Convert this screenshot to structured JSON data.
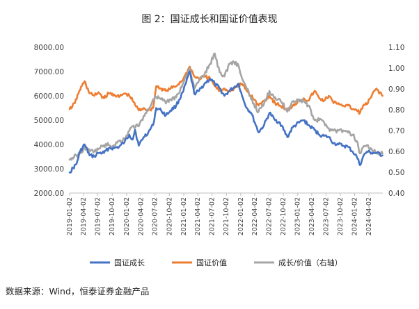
{
  "chart_data": {
    "type": "line",
    "title": "图 2：国证成长和国证价值表现",
    "source": "数据来源：Wind，恒泰证券金融产品",
    "y_left": {
      "ylim": [
        2000,
        8000
      ],
      "ticks": [
        "2000.00",
        "3000.00",
        "4000.00",
        "5000.00",
        "6000.00",
        "7000.00",
        "8000.00"
      ]
    },
    "y_right": {
      "ylim": [
        0.4,
        1.1
      ],
      "ticks": [
        "0.40",
        "0.50",
        "0.60",
        "0.70",
        "0.80",
        "0.90",
        "1.00",
        "1.10"
      ]
    },
    "x_range": [
      "2019-01-02",
      "2024-06-30"
    ],
    "x_ticks": [
      "2019-01-02",
      "2019-04-02",
      "2019-07-02",
      "2019-10-02",
      "2020-01-02",
      "2020-04-02",
      "2020-07-02",
      "2020-10-02",
      "2021-01-02",
      "2021-04-02",
      "2021-07-02",
      "2021-10-02",
      "2022-01-02",
      "2022-04-02",
      "2022-07-02",
      "2022-10-02",
      "2023-01-02",
      "2023-04-02",
      "2023-07-02",
      "2023-10-02",
      "2024-01-02",
      "2024-04-02"
    ],
    "grid": false,
    "legend_position": "bottom",
    "series": [
      {
        "name": "国证成长",
        "axis": "left",
        "color": "#4472C4",
        "points": [
          [
            "2019-01-02",
            2850
          ],
          [
            "2019-02-15",
            3200
          ],
          [
            "2019-03-10",
            3700
          ],
          [
            "2019-04-08",
            4000
          ],
          [
            "2019-05-10",
            3550
          ],
          [
            "2019-06-10",
            3500
          ],
          [
            "2019-07-05",
            3650
          ],
          [
            "2019-08-10",
            3650
          ],
          [
            "2019-09-10",
            3850
          ],
          [
            "2019-10-15",
            3850
          ],
          [
            "2019-11-15",
            3900
          ],
          [
            "2019-12-20",
            4100
          ],
          [
            "2020-01-20",
            4400
          ],
          [
            "2020-02-10",
            4200
          ],
          [
            "2020-02-25",
            4600
          ],
          [
            "2020-03-20",
            3950
          ],
          [
            "2020-04-20",
            4300
          ],
          [
            "2020-05-20",
            4500
          ],
          [
            "2020-06-20",
            4800
          ],
          [
            "2020-07-10",
            5500
          ],
          [
            "2020-08-10",
            5400
          ],
          [
            "2020-09-10",
            5200
          ],
          [
            "2020-10-10",
            5400
          ],
          [
            "2020-11-15",
            5600
          ],
          [
            "2020-12-31",
            6200
          ],
          [
            "2021-02-10",
            7000
          ],
          [
            "2021-03-10",
            6100
          ],
          [
            "2021-04-10",
            6200
          ],
          [
            "2021-05-15",
            6500
          ],
          [
            "2021-06-20",
            6700
          ],
          [
            "2021-07-20",
            6500
          ],
          [
            "2021-08-20",
            6300
          ],
          [
            "2021-09-20",
            6000
          ],
          [
            "2021-10-20",
            6200
          ],
          [
            "2021-11-20",
            6350
          ],
          [
            "2021-12-20",
            6500
          ],
          [
            "2022-01-10",
            6000
          ],
          [
            "2022-02-10",
            5500
          ],
          [
            "2022-03-10",
            5300
          ],
          [
            "2022-04-26",
            4500
          ],
          [
            "2022-06-01",
            4800
          ],
          [
            "2022-07-05",
            5300
          ],
          [
            "2022-08-10",
            5000
          ],
          [
            "2022-09-10",
            4900
          ],
          [
            "2022-10-28",
            4300
          ],
          [
            "2022-12-01",
            4700
          ],
          [
            "2023-01-10",
            4900
          ],
          [
            "2023-02-10",
            5000
          ],
          [
            "2023-03-10",
            4800
          ],
          [
            "2023-04-20",
            4600
          ],
          [
            "2023-05-20",
            4400
          ],
          [
            "2023-06-20",
            4350
          ],
          [
            "2023-07-20",
            4300
          ],
          [
            "2023-08-20",
            4050
          ],
          [
            "2023-09-20",
            4000
          ],
          [
            "2023-10-20",
            3950
          ],
          [
            "2023-11-20",
            3900
          ],
          [
            "2023-12-20",
            3700
          ],
          [
            "2024-01-15",
            3500
          ],
          [
            "2024-02-05",
            3150
          ],
          [
            "2024-02-25",
            3500
          ],
          [
            "2024-03-20",
            3700
          ],
          [
            "2024-04-20",
            3650
          ],
          [
            "2024-05-20",
            3650
          ],
          [
            "2024-06-28",
            3550
          ]
        ]
      },
      {
        "name": "国证价值",
        "axis": "left",
        "color": "#ED7D31",
        "points": [
          [
            "2019-01-02",
            5450
          ],
          [
            "2019-02-05",
            5700
          ],
          [
            "2019-03-05",
            6200
          ],
          [
            "2019-04-08",
            6600
          ],
          [
            "2019-05-10",
            6100
          ],
          [
            "2019-06-10",
            6000
          ],
          [
            "2019-07-05",
            6150
          ],
          [
            "2019-08-10",
            5900
          ],
          [
            "2019-09-10",
            6100
          ],
          [
            "2019-10-15",
            6050
          ],
          [
            "2019-11-15",
            5950
          ],
          [
            "2019-12-20",
            6100
          ],
          [
            "2020-01-20",
            6000
          ],
          [
            "2020-02-10",
            5800
          ],
          [
            "2020-03-20",
            5400
          ],
          [
            "2020-04-20",
            5500
          ],
          [
            "2020-05-20",
            5400
          ],
          [
            "2020-06-20",
            5500
          ],
          [
            "2020-07-10",
            6400
          ],
          [
            "2020-08-10",
            6300
          ],
          [
            "2020-09-10",
            6200
          ],
          [
            "2020-10-10",
            6300
          ],
          [
            "2020-11-15",
            6400
          ],
          [
            "2020-12-31",
            6700
          ],
          [
            "2021-02-10",
            7200
          ],
          [
            "2021-03-10",
            6800
          ],
          [
            "2021-04-10",
            6700
          ],
          [
            "2021-05-15",
            6800
          ],
          [
            "2021-06-20",
            6700
          ],
          [
            "2021-07-20",
            6400
          ],
          [
            "2021-08-20",
            6200
          ],
          [
            "2021-09-20",
            6300
          ],
          [
            "2021-10-20",
            6200
          ],
          [
            "2021-11-20",
            6300
          ],
          [
            "2021-12-20",
            6400
          ],
          [
            "2022-01-10",
            6500
          ],
          [
            "2022-02-10",
            6200
          ],
          [
            "2022-03-10",
            6000
          ],
          [
            "2022-04-26",
            5600
          ],
          [
            "2022-06-01",
            5800
          ],
          [
            "2022-07-05",
            6000
          ],
          [
            "2022-08-10",
            5700
          ],
          [
            "2022-09-10",
            5600
          ],
          [
            "2022-10-28",
            5400
          ],
          [
            "2022-12-01",
            5600
          ],
          [
            "2023-01-10",
            5800
          ],
          [
            "2023-02-10",
            5900
          ],
          [
            "2023-03-10",
            5800
          ],
          [
            "2023-04-20",
            6200
          ],
          [
            "2023-05-20",
            5900
          ],
          [
            "2023-06-20",
            5800
          ],
          [
            "2023-07-20",
            6000
          ],
          [
            "2023-08-20",
            5700
          ],
          [
            "2023-09-20",
            5700
          ],
          [
            "2023-10-20",
            5600
          ],
          [
            "2023-11-20",
            5600
          ],
          [
            "2023-12-20",
            5450
          ],
          [
            "2024-01-15",
            5400
          ],
          [
            "2024-02-05",
            5300
          ],
          [
            "2024-02-25",
            5600
          ],
          [
            "2024-03-20",
            5650
          ],
          [
            "2024-04-20",
            6000
          ],
          [
            "2024-05-20",
            6300
          ],
          [
            "2024-06-28",
            6000
          ]
        ]
      },
      {
        "name": "成长/价值（右轴）",
        "axis": "right",
        "color": "#A5A5A5",
        "points": [
          [
            "2019-01-02",
            0.56
          ],
          [
            "2019-02-15",
            0.58
          ],
          [
            "2019-03-10",
            0.59
          ],
          [
            "2019-04-08",
            0.62
          ],
          [
            "2019-05-10",
            0.6
          ],
          [
            "2019-06-10",
            0.6
          ],
          [
            "2019-07-05",
            0.61
          ],
          [
            "2019-08-10",
            0.63
          ],
          [
            "2019-09-10",
            0.63
          ],
          [
            "2019-10-15",
            0.63
          ],
          [
            "2019-11-15",
            0.65
          ],
          [
            "2019-12-20",
            0.66
          ],
          [
            "2020-01-20",
            0.7
          ],
          [
            "2020-02-10",
            0.72
          ],
          [
            "2020-03-20",
            0.72
          ],
          [
            "2020-04-20",
            0.77
          ],
          [
            "2020-05-20",
            0.8
          ],
          [
            "2020-06-20",
            0.85
          ],
          [
            "2020-07-10",
            0.86
          ],
          [
            "2020-08-10",
            0.85
          ],
          [
            "2020-09-10",
            0.83
          ],
          [
            "2020-10-10",
            0.85
          ],
          [
            "2020-11-15",
            0.86
          ],
          [
            "2020-12-31",
            0.93
          ],
          [
            "2021-02-10",
            1.0
          ],
          [
            "2021-03-10",
            0.9
          ],
          [
            "2021-04-10",
            0.94
          ],
          [
            "2021-05-15",
            0.97
          ],
          [
            "2021-06-20",
            1.02
          ],
          [
            "2021-07-20",
            1.07
          ],
          [
            "2021-08-20",
            0.98
          ],
          [
            "2021-09-20",
            0.96
          ],
          [
            "2021-10-20",
            1.02
          ],
          [
            "2021-11-20",
            1.03
          ],
          [
            "2021-12-20",
            1.01
          ],
          [
            "2022-01-10",
            0.95
          ],
          [
            "2022-02-10",
            0.9
          ],
          [
            "2022-03-10",
            0.85
          ],
          [
            "2022-04-26",
            0.79
          ],
          [
            "2022-06-01",
            0.83
          ],
          [
            "2022-07-05",
            0.89
          ],
          [
            "2022-08-10",
            0.86
          ],
          [
            "2022-09-10",
            0.85
          ],
          [
            "2022-10-28",
            0.79
          ],
          [
            "2022-12-01",
            0.84
          ],
          [
            "2023-01-10",
            0.85
          ],
          [
            "2023-02-10",
            0.84
          ],
          [
            "2023-03-10",
            0.82
          ],
          [
            "2023-04-20",
            0.75
          ],
          [
            "2023-05-20",
            0.75
          ],
          [
            "2023-06-20",
            0.74
          ],
          [
            "2023-07-20",
            0.71
          ],
          [
            "2023-08-20",
            0.7
          ],
          [
            "2023-09-20",
            0.7
          ],
          [
            "2023-10-20",
            0.7
          ],
          [
            "2023-11-20",
            0.69
          ],
          [
            "2023-12-20",
            0.68
          ],
          [
            "2024-01-15",
            0.65
          ],
          [
            "2024-02-05",
            0.59
          ],
          [
            "2024-02-25",
            0.62
          ],
          [
            "2024-03-20",
            0.63
          ],
          [
            "2024-04-20",
            0.61
          ],
          [
            "2024-05-20",
            0.59
          ],
          [
            "2024-06-28",
            0.59
          ]
        ]
      }
    ]
  }
}
